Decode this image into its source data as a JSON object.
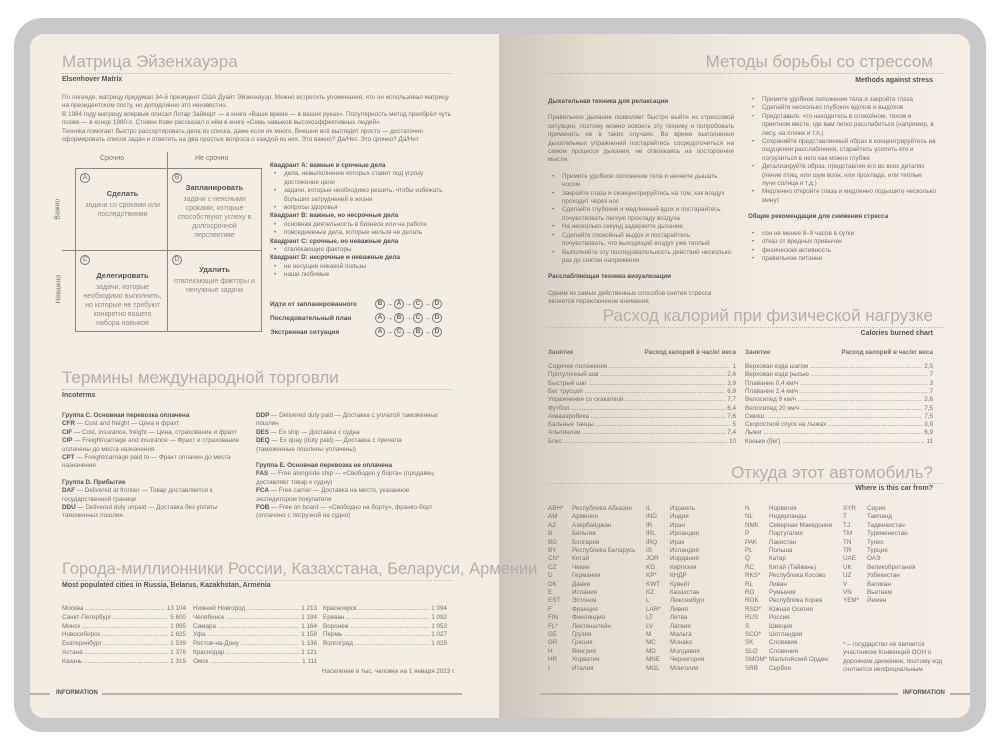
{
  "eisenhower": {
    "title": "Матрица Эйзенхауэра",
    "subtitle": "Elsenhover Matrix",
    "intro": [
      "По легенде, матрицу придумал 34-й президент США Дуайт Эйзенхауэр. Можно встретить упоминания, что он использовал матрицу на президентском посту, но доподлинно это неизвестно.",
      "В 1984 году матрицу впервые описал Лотар Зайверт — в книге «Ваше время — в ваших руках». Популярность метод приобрёл чуть позже — в конце 1980-х. Стивен Кови рассказал о нём в книге «Семь навыков высокоэффективных людей».",
      "Техника помогает быстро рассортировать дела из списка, даже если их много. Внешне всё выглядит просто — достаточно сформировать список задач и ответить на два простых вопроса о каждой из них. Это важно? Да/Нет. Это срочно? Да/Нет"
    ],
    "col_urgent": "Срочно",
    "col_not_urgent": "Не срочно",
    "row_important": "Важно",
    "row_not_important": "Неважно",
    "quadrants": [
      {
        "letter": "A",
        "title": "Сделать",
        "text": "задачи со сроками или последствиями"
      },
      {
        "letter": "B",
        "title": "Запланировать",
        "text": "задачи с неясными сроками, которые способствуют успеху в долгосрочной перспективе"
      },
      {
        "letter": "C",
        "title": "Делегировать",
        "text": "задачи, которые необходимо выполнить, но которые не требуют конкретно вашего набора навыков"
      },
      {
        "letter": "D",
        "title": "Удалить",
        "text": "отвлекающие факторы и ненужные задачи"
      }
    ],
    "descriptions": [
      {
        "title": "Квадрант A: важные и срочные дела",
        "items": [
          "дела, невыполнение которых ставит под угрозу достижение цели",
          "задачи, которые необходимо решить, чтобы избежать больших затруднений в жизни",
          "вопросы здоровья"
        ]
      },
      {
        "title": "Квадрант B: важные, но несрочные дела",
        "items": [
          "основная деятельность в бизнесе или на работе",
          "повседневные дела, которые нельзя не делать"
        ]
      },
      {
        "title": "Квадрант C: срочные, но неважные дела",
        "items": [
          "отвлекающие факторы"
        ]
      },
      {
        "title": "Квадрант D: несрочные и неважные дела",
        "items": [
          "не несущие никакой пользы",
          "наши любимые"
        ]
      }
    ],
    "sequences": [
      {
        "label": "Идти от запланированного",
        "order": [
          "B",
          "A",
          "C",
          "D"
        ]
      },
      {
        "label": "Последовательный план",
        "order": [
          "A",
          "B",
          "C",
          "D"
        ]
      },
      {
        "label": "Экстренная ситуация",
        "order": [
          "A",
          "C",
          "B",
          "D"
        ]
      }
    ]
  },
  "incoterms": {
    "title": "Термины международной торговли",
    "subtitle": "Incoterms",
    "col1": [
      {
        "group": "Группа C. Основная перевозка оплачена",
        "terms": [
          [
            "CFR",
            "Cost and freight — Цена и фрахт"
          ],
          [
            "CIF",
            "Cost, insurance, freight — Цена, страхование и фрахт"
          ],
          [
            "CIP",
            "Freight/carriage and insurance — Фрахт и страхование оплачены до места назначения"
          ],
          [
            "CPT",
            "Freight/carriage paid to — Фрахт оплачен до места назначения"
          ]
        ]
      },
      {
        "group": "Группа D. Прибытие",
        "terms": [
          [
            "DAF",
            "Delivered at frontier — Товар доставляется к государственной границе"
          ],
          [
            "DDU",
            "Delivered duty unpaid — Доставка без уплаты таможенных пошлин"
          ]
        ]
      }
    ],
    "col2": [
      {
        "group": "",
        "terms": [
          [
            "DDP",
            "Delivered duty paid — Доставка с уплатой таможенных пошлин"
          ],
          [
            "DES",
            "Ex ship — Доставка с судна"
          ],
          [
            "DEQ",
            "Ex quay (duty paid) — Доставка с причала (таможенные пошлины уплачены)"
          ]
        ]
      },
      {
        "group": "Группа E. Основная перевозка не оплачена",
        "terms": [
          [
            "FAS",
            "Free alongside ship — «Свободно у борта» (продавец доставляет товар к судну)"
          ],
          [
            "FCA",
            "Free carrier — Доставка на место, указанное экспедитором покупателя"
          ],
          [
            "FOB",
            "Free on board — «Свободно на борту», франко-борт (оплачено с погрузкой на судно)"
          ]
        ]
      }
    ]
  },
  "cities": {
    "title": "Города-миллионники России, Казахстана, Беларуси, Армении",
    "subtitle": "Most populated cities in Russia, Belarus, Kazakhstan, Armenia",
    "columns": [
      [
        [
          "Москва",
          "13 104"
        ],
        [
          "Санкт-Петербург",
          "5 600"
        ],
        [
          "Минск",
          "1 995"
        ],
        [
          "Новосибирск",
          "1 625"
        ],
        [
          "Екатеринбург",
          "1 539"
        ],
        [
          "Астана",
          "1 376"
        ],
        [
          "Казань",
          "1 315"
        ]
      ],
      [
        [
          "Нижний Новгород",
          "1 213"
        ],
        [
          "Челябинск",
          "1 184"
        ],
        [
          "Самара",
          "1 164"
        ],
        [
          "Уфа",
          "1 158"
        ],
        [
          "Ростов-на-Дону",
          "1 136"
        ],
        [
          "Краснодар",
          "1 121"
        ],
        [
          "Омск",
          "1 111"
        ]
      ],
      [
        [
          "Красноярск",
          "1 094"
        ],
        [
          "Ереван",
          "1 092"
        ],
        [
          "Воронеж",
          "1 052"
        ],
        [
          "Пермь",
          "1 027"
        ],
        [
          "Волгоград",
          "1 025"
        ]
      ]
    ],
    "note": "Население в тыс. человек на 1 января 2023 г."
  },
  "stress": {
    "title": "Методы борьбы со стрессом",
    "subtitle": "Methods against stress",
    "breathing_title": "Дыхательная техника для релаксации",
    "breathing_text": "Правильное дыхание позволяет быстро выйти из стрессовой ситуации, поэтому можно освоить эту технику и попробовать применить ее в таких случаях. Во время выполнения дыхательных упражнений постарайтесь сосредоточиться на самом процессе дыхания, не отвлекаясь на посторонние мысли.",
    "breathing_steps": [
      "Примите удобное положение тела и начните дышать носом",
      "Закройте глаза и сконцентрируйтесь на том, как воздух проходит через нос",
      "Сделайте глубокий и медленный вдох и постарайтесь почувствовать легкую прохладу воздуха",
      "На несколько секунд задержите дыхание",
      "Сделайте спокойный выдох и постарайтесь почувствовать, что выходящий воздух уже теплый",
      "Выполняйте эту последовательность действий несколько раз до снятия напряжения"
    ],
    "visual_title": "Расслабляющая техника визуализации",
    "visual_text": "Одним из самых действенных способов снятия стресса является переключение внимания.",
    "visual_steps": [
      "Примите удобное положение тела и закройте глаза",
      "Сделайте несколько глубоких вдохов и выдохов",
      "Представьте, что находитесь в спокойном, тихом и приятном месте, где вам легко расслабиться (например, в лесу, на пляже и т.п.)",
      "Сохраняйте представляемый образ и концентрируйтесь на ощущении расслабления, старайтесь усилить его и погрузиться в него как можно глубже",
      "Детализируйте образ, представляя его во всех деталях (пение птиц, или шум волн, или прохлада, или теплые лучи солнца и т.д.)",
      "Медленно откройте глаза и медленно подышите несколько минут"
    ],
    "general_title": "Общие рекомендации для снижения стресса",
    "general": [
      "сон не менее 8–9 часов в сутки",
      "отказ от вредных привычек",
      "физическая активность",
      "правильное питание"
    ]
  },
  "calories": {
    "title": "Расход калорий при физической нагрузке",
    "subtitle": "Calories burned chart",
    "col_activity": "Занятие",
    "col_value": "Расход калорий в час/кг веса",
    "left": [
      [
        "Сидячее положение",
        "1"
      ],
      [
        "Прогулочный шаг",
        "2,6"
      ],
      [
        "Быстрый шаг",
        "3,9"
      ],
      [
        "Бег трусцой",
        "6,9"
      ],
      [
        "Упражнения со скакалкой",
        "7,7"
      ],
      [
        "Футбол",
        "6,4"
      ],
      [
        "Аквааэробика",
        "7,6"
      ],
      [
        "Бальные танцы",
        "5"
      ],
      [
        "Альпинизм",
        "7,4"
      ],
      [
        "Бокс",
        "10"
      ]
    ],
    "right": [
      [
        "Верховая езда шагом",
        "2,5"
      ],
      [
        "Верховая езда рысью",
        "7"
      ],
      [
        "Плавание 0,4 км/ч",
        "3"
      ],
      [
        "Плавание 2,4 км/ч",
        "7"
      ],
      [
        "Велосипед 9 км/ч",
        "2,6"
      ],
      [
        "Велосипед 20 км/ч",
        "7,5"
      ],
      [
        "Сквош",
        "7,5"
      ],
      [
        "Скоростной спуск на лыжах",
        "3,9"
      ],
      [
        "Лыжи",
        "6,9"
      ],
      [
        "Коньки (бег)",
        "11"
      ]
    ]
  },
  "cars": {
    "title": "Откуда этот автомобиль?",
    "subtitle": "Where is this car from?",
    "columns": [
      [
        [
          "ABH*",
          "Республика Абхазия"
        ],
        [
          "AM",
          "Армения"
        ],
        [
          "AZ",
          "Азербайджан"
        ],
        [
          "B",
          "Бельгия"
        ],
        [
          "BG",
          "Болгария"
        ],
        [
          "BY",
          "Республика Беларусь"
        ],
        [
          "CN*",
          "Китай"
        ],
        [
          "CZ",
          "Чехия"
        ],
        [
          "D",
          "Германия"
        ],
        [
          "DK",
          "Дания"
        ],
        [
          "E",
          "Испания"
        ],
        [
          "EST",
          "Эстония"
        ],
        [
          "F",
          "Франция"
        ],
        [
          "FIN",
          "Финляндия"
        ],
        [
          "FL*",
          "Лихтенштейн"
        ],
        [
          "GE",
          "Грузия"
        ],
        [
          "GR",
          "Греция"
        ],
        [
          "H",
          "Венгрия"
        ],
        [
          "HR",
          "Хорватия"
        ],
        [
          "I",
          "Италия"
        ]
      ],
      [
        [
          "IL",
          "Израиль"
        ],
        [
          "IND",
          "Индия"
        ],
        [
          "IR",
          "Иран"
        ],
        [
          "IRL",
          "Ирландия"
        ],
        [
          "IRQ",
          "Ирак"
        ],
        [
          "IS",
          "Исландия"
        ],
        [
          "JOR",
          "Иордания"
        ],
        [
          "KG",
          "Киргизия"
        ],
        [
          "KP*",
          "КНДР"
        ],
        [
          "KWT",
          "Кувейт"
        ],
        [
          "KZ",
          "Казахстан"
        ],
        [
          "L",
          "Люксембург"
        ],
        [
          "LAR*",
          "Ливия"
        ],
        [
          "LT",
          "Литва"
        ],
        [
          "LV",
          "Латвия"
        ],
        [
          "M",
          "Мальта"
        ],
        [
          "MC",
          "Монако"
        ],
        [
          "MD",
          "Молдавия"
        ],
        [
          "MNE",
          "Черногория"
        ],
        [
          "MGL",
          "Монголия"
        ]
      ],
      [
        [
          "N",
          "Норвегия"
        ],
        [
          "NL",
          "Нидерланды"
        ],
        [
          "NMK",
          "Северная Македония"
        ],
        [
          "P",
          "Португалия"
        ],
        [
          "PAK",
          "Пакистан"
        ],
        [
          "PL",
          "Польша"
        ],
        [
          "Q",
          "Катар"
        ],
        [
          "RC",
          "Китай (Тайвань)"
        ],
        [
          "RKS*",
          "Республика Косово"
        ],
        [
          "RL",
          "Ливан"
        ],
        [
          "RO",
          "Румыния"
        ],
        [
          "ROK",
          "Республика Корея"
        ],
        [
          "RSO*",
          "Южная Осетия"
        ],
        [
          "RUS",
          "Россия"
        ],
        [
          "S",
          "Швеция"
        ],
        [
          "SCO*",
          "Шотландия"
        ],
        [
          "SK",
          "Словакия"
        ],
        [
          "SLO",
          "Словения"
        ],
        [
          "SMOM*",
          "Мальтийский Орден"
        ],
        [
          "SRB",
          "Сербия"
        ]
      ],
      [
        [
          "SYR",
          "Сирия"
        ],
        [
          "T",
          "Таиланд"
        ],
        [
          "TJ",
          "Таджикистан"
        ],
        [
          "TM",
          "Туркменистан"
        ],
        [
          "TN",
          "Тунис"
        ],
        [
          "TR",
          "Турция"
        ],
        [
          "UAE",
          "ОАЭ"
        ],
        [
          "UK",
          "Великобритания"
        ],
        [
          "UZ",
          "Узбекистан"
        ],
        [
          "V",
          "Ватикан"
        ],
        [
          "VN",
          "Вьетнам"
        ],
        [
          "YEM*",
          "Йемен"
        ]
      ]
    ],
    "footnote": "* – государство не является участником Конвенций ООН о дорожном движении, поэтому код считается неофициальным"
  },
  "footer": {
    "left": "INFORMATION",
    "right": "INFORMATION"
  }
}
